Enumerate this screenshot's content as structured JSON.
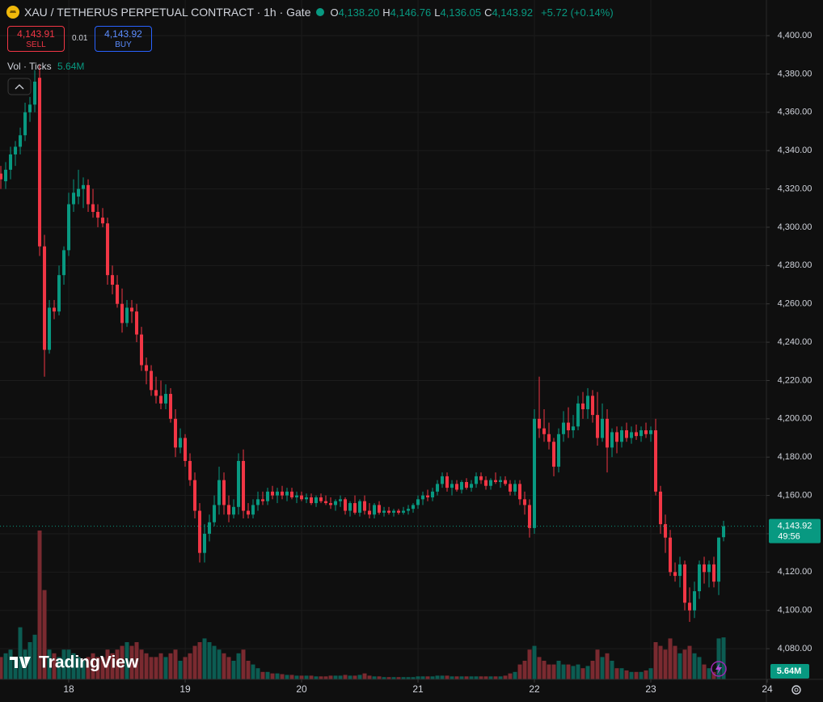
{
  "header": {
    "symbol_title": "XAU / TETHERUS PERPETUAL CONTRACT · 1h · Gate",
    "ohlc": [
      {
        "label": "O",
        "value": "4,138.20"
      },
      {
        "label": "H",
        "value": "4,146.76"
      },
      {
        "label": "L",
        "value": "4,136.05"
      },
      {
        "label": "C",
        "value": "4,143.92"
      }
    ],
    "change": "+5.72 (+0.14%)"
  },
  "trade": {
    "sell_price": "4,143.91",
    "sell_label": "SELL",
    "spread": "0.01",
    "buy_price": "4,143.92",
    "buy_label": "BUY"
  },
  "volume_legend": {
    "label": "Vol · Ticks",
    "value": "5.64M"
  },
  "watermark": "TradingView",
  "chart_data": {
    "type": "candlestick",
    "up_color": "#089981",
    "down_color": "#f23645",
    "grid": true,
    "ylim": [
      4064,
      4418.6
    ],
    "xlim": [
      -14.17,
      143.83
    ],
    "yticks": [
      {
        "value": 4080,
        "label": "4,080.00"
      },
      {
        "value": 4100,
        "label": "4,100.00"
      },
      {
        "value": 4120,
        "label": "4,120.00"
      },
      {
        "value": 4140,
        "label": "4,140.00"
      },
      {
        "value": 4160,
        "label": "4,160.00"
      },
      {
        "value": 4180,
        "label": "4,180.00"
      },
      {
        "value": 4200,
        "label": "4,200.00"
      },
      {
        "value": 4220,
        "label": "4,220.00"
      },
      {
        "value": 4240,
        "label": "4,240.00"
      },
      {
        "value": 4260,
        "label": "4,260.00"
      },
      {
        "value": 4280,
        "label": "4,280.00"
      },
      {
        "value": 4300,
        "label": "4,300.00"
      },
      {
        "value": 4320,
        "label": "4,320.00"
      },
      {
        "value": 4340,
        "label": "4,340.00"
      },
      {
        "value": 4360,
        "label": "4,360.00"
      },
      {
        "value": 4380,
        "label": "4,380.00"
      },
      {
        "value": 4400,
        "label": "4,400.00"
      }
    ],
    "xticks": [
      {
        "value": 0,
        "label": "18"
      },
      {
        "value": 24,
        "label": "19"
      },
      {
        "value": 48,
        "label": "20"
      },
      {
        "value": 72,
        "label": "21"
      },
      {
        "value": 96,
        "label": "22"
      },
      {
        "value": 120,
        "label": "23"
      },
      {
        "value": 144,
        "label": "24"
      }
    ],
    "last_price": 4143.92,
    "last_price_label": "4,143.92",
    "countdown": "49:56",
    "volume_last_label": "5.64M",
    "x": [
      -14,
      -13,
      -12,
      -11,
      -10,
      -9,
      -8,
      -7,
      -6,
      -5,
      -4,
      -3,
      -2,
      -1,
      0,
      1,
      2,
      3,
      4,
      5,
      6,
      7,
      8,
      9,
      10,
      11,
      12,
      13,
      14,
      15,
      16,
      17,
      18,
      19,
      20,
      21,
      22,
      23,
      24,
      25,
      26,
      27,
      28,
      29,
      30,
      31,
      32,
      33,
      34,
      35,
      36,
      37,
      38,
      39,
      40,
      41,
      42,
      43,
      44,
      45,
      46,
      47,
      48,
      49,
      50,
      51,
      52,
      53,
      54,
      55,
      56,
      57,
      58,
      59,
      60,
      61,
      62,
      63,
      64,
      65,
      66,
      67,
      68,
      69,
      70,
      71,
      72,
      73,
      74,
      75,
      76,
      77,
      78,
      79,
      80,
      81,
      82,
      83,
      84,
      85,
      86,
      87,
      88,
      89,
      90,
      91,
      92,
      93,
      94,
      95,
      96,
      97,
      98,
      99,
      100,
      101,
      102,
      103,
      104,
      105,
      106,
      107,
      108,
      109,
      110,
      111,
      112,
      113,
      114,
      115,
      116,
      117,
      118,
      119,
      120,
      121,
      122,
      123,
      124,
      125,
      126,
      127,
      128,
      129,
      130,
      131,
      132,
      133,
      134,
      135
    ],
    "open": [
      4328,
      4324,
      4330,
      4338,
      4342,
      4348,
      4360,
      4364,
      4378,
      4290,
      4236,
      4258,
      4256,
      4275,
      4288,
      4312,
      4316,
      4320,
      4322,
      4312,
      4308,
      4305,
      4302,
      4275,
      4270,
      4260,
      4250,
      4258,
      4256,
      4244,
      4228,
      4225,
      4215,
      4212,
      4208,
      4213,
      4200,
      4185,
      4190,
      4178,
      4168,
      4152,
      4130,
      4140,
      4146,
      4155,
      4168,
      4155,
      4150,
      4154,
      4178,
      4152,
      4150,
      4155,
      4158,
      4157,
      4162,
      4160,
      4162,
      4160,
      4162,
      4159,
      4160,
      4158,
      4159,
      4156,
      4159,
      4157,
      4156,
      4155,
      4157,
      4158,
      4152,
      4156,
      4151,
      4157,
      4152,
      4150,
      4155,
      4151,
      4152,
      4151,
      4152,
      4151,
      4152,
      4153,
      4155,
      4158,
      4160,
      4159,
      4162,
      4166,
      4170,
      4164,
      4166,
      4163,
      4167,
      4164,
      4166,
      4170,
      4168,
      4165,
      4168,
      4167,
      4168,
      4166,
      4162,
      4166,
      4158,
      4155,
      4143,
      4200,
      4195,
      4192,
      4188,
      4175,
      4192,
      4198,
      4194,
      4196,
      4208,
      4205,
      4212,
      4202,
      4190,
      4200,
      4185,
      4193,
      4188,
      4194,
      4190,
      4193,
      4191,
      4194,
      4192,
      4194,
      4162,
      4145,
      4138,
      4120,
      4118,
      4124,
      4104,
      4100,
      4110,
      4124,
      4120,
      4124,
      4115,
      4138.2
    ],
    "high": [
      4332,
      4334,
      4342,
      4345,
      4352,
      4365,
      4368,
      4382,
      4385,
      4296,
      4262,
      4262,
      4280,
      4290,
      4318,
      4325,
      4330,
      4326,
      4325,
      4320,
      4312,
      4310,
      4305,
      4280,
      4275,
      4268,
      4262,
      4262,
      4260,
      4248,
      4232,
      4228,
      4222,
      4220,
      4218,
      4216,
      4205,
      4195,
      4192,
      4182,
      4172,
      4156,
      4145,
      4150,
      4160,
      4175,
      4172,
      4160,
      4158,
      4182,
      4184,
      4156,
      4158,
      4162,
      4162,
      4164,
      4165,
      4164,
      4165,
      4164,
      4164,
      4162,
      4162,
      4161,
      4161,
      4160,
      4161,
      4160,
      4159,
      4158,
      4160,
      4159,
      4157,
      4160,
      4158,
      4160,
      4156,
      4156,
      4157,
      4154,
      4154,
      4153,
      4153,
      4154,
      4155,
      4156,
      4160,
      4162,
      4163,
      4164,
      4168,
      4172,
      4172,
      4168,
      4168,
      4168,
      4169,
      4168,
      4172,
      4172,
      4170,
      4169,
      4172,
      4170,
      4170,
      4168,
      4168,
      4168,
      4162,
      4158,
      4205,
      4222,
      4205,
      4198,
      4190,
      4195,
      4204,
      4206,
      4202,
      4212,
      4214,
      4216,
      4215,
      4214,
      4208,
      4205,
      4195,
      4196,
      4196,
      4198,
      4196,
      4197,
      4196,
      4198,
      4196,
      4200,
      4165,
      4150,
      4142,
      4125,
      4128,
      4126,
      4112,
      4115,
      4126,
      4128,
      4126,
      4128,
      4138,
      4146.76
    ],
    "low": [
      4320,
      4320,
      4325,
      4332,
      4338,
      4345,
      4355,
      4360,
      4285,
      4222,
      4234,
      4252,
      4254,
      4270,
      4285,
      4308,
      4312,
      4310,
      4308,
      4305,
      4300,
      4300,
      4270,
      4265,
      4258,
      4245,
      4248,
      4250,
      4240,
      4225,
      4218,
      4212,
      4208,
      4205,
      4205,
      4198,
      4180,
      4182,
      4175,
      4165,
      4148,
      4125,
      4125,
      4136,
      4144,
      4150,
      4150,
      4146,
      4148,
      4150,
      4148,
      4148,
      4148,
      4152,
      4155,
      4155,
      4158,
      4156,
      4158,
      4157,
      4158,
      4156,
      4157,
      4156,
      4155,
      4154,
      4156,
      4155,
      4153,
      4152,
      4154,
      4150,
      4149,
      4150,
      4149,
      4150,
      4148,
      4148,
      4150,
      4149,
      4150,
      4149,
      4150,
      4150,
      4150,
      4151,
      4153,
      4155,
      4157,
      4157,
      4160,
      4164,
      4162,
      4160,
      4162,
      4161,
      4163,
      4162,
      4164,
      4166,
      4163,
      4163,
      4166,
      4164,
      4165,
      4160,
      4160,
      4155,
      4150,
      4138,
      4140,
      4190,
      4188,
      4184,
      4170,
      4172,
      4188,
      4190,
      4190,
      4194,
      4200,
      4200,
      4198,
      4186,
      4188,
      4172,
      4180,
      4182,
      4185,
      4188,
      4187,
      4189,
      4188,
      4190,
      4188,
      4160,
      4140,
      4130,
      4118,
      4115,
      4112,
      4100,
      4094,
      4096,
      4106,
      4114,
      4112,
      4112,
      4108,
      4136.05
    ],
    "close": [
      4325,
      4330,
      4338,
      4342,
      4348,
      4360,
      4364,
      4376,
      4290,
      4236,
      4258,
      4256,
      4275,
      4288,
      4312,
      4318,
      4320,
      4322,
      4312,
      4308,
      4305,
      4302,
      4275,
      4270,
      4260,
      4250,
      4258,
      4256,
      4244,
      4228,
      4225,
      4215,
      4212,
      4208,
      4213,
      4200,
      4185,
      4190,
      4178,
      4168,
      4152,
      4130,
      4140,
      4146,
      4155,
      4168,
      4155,
      4150,
      4154,
      4178,
      4152,
      4150,
      4155,
      4158,
      4157,
      4162,
      4160,
      4162,
      4160,
      4162,
      4159,
      4160,
      4158,
      4159,
      4156,
      4159,
      4157,
      4156,
      4155,
      4157,
      4158,
      4152,
      4156,
      4151,
      4157,
      4152,
      4150,
      4155,
      4151,
      4152,
      4151,
      4152,
      4151,
      4152,
      4153,
      4155,
      4158,
      4160,
      4159,
      4162,
      4166,
      4170,
      4164,
      4166,
      4163,
      4167,
      4164,
      4166,
      4170,
      4168,
      4165,
      4168,
      4167,
      4168,
      4166,
      4162,
      4166,
      4158,
      4155,
      4143,
      4200,
      4195,
      4192,
      4188,
      4175,
      4192,
      4198,
      4194,
      4196,
      4208,
      4205,
      4212,
      4202,
      4190,
      4200,
      4185,
      4193,
      4188,
      4194,
      4190,
      4193,
      4191,
      4194,
      4192,
      4194,
      4162,
      4145,
      4138,
      4120,
      4118,
      4124,
      4104,
      4100,
      4110,
      4124,
      4120,
      4124,
      4115,
      4138,
      4143.92
    ],
    "volume": [
      3,
      3.5,
      4,
      3,
      7,
      4,
      5,
      6,
      20,
      12,
      4,
      3.5,
      3,
      4,
      4,
      3.5,
      3,
      2.5,
      3,
      3.5,
      3,
      3,
      4,
      3.5,
      4,
      4.5,
      5,
      4.5,
      5,
      4,
      3.5,
      3,
      3,
      3.5,
      3,
      3.5,
      4,
      2.5,
      3,
      3.5,
      4.5,
      5,
      5.5,
      5,
      4.5,
      4,
      3.5,
      3,
      2.5,
      3.5,
      4,
      2.5,
      2,
      1.5,
      1,
      1,
      0.8,
      0.8,
      0.7,
      0.6,
      0.6,
      0.5,
      0.5,
      0.5,
      0.5,
      0.4,
      0.4,
      0.4,
      0.5,
      0.5,
      0.5,
      0.6,
      0.5,
      0.5,
      0.6,
      0.8,
      0.5,
      0.4,
      0.4,
      0.3,
      0.3,
      0.3,
      0.3,
      0.3,
      0.3,
      0.3,
      0.4,
      0.4,
      0.4,
      0.4,
      0.5,
      0.5,
      0.5,
      0.4,
      0.4,
      0.4,
      0.4,
      0.4,
      0.4,
      0.4,
      0.4,
      0.4,
      0.4,
      0.4,
      0.5,
      0.8,
      1,
      2,
      2.5,
      4,
      4.5,
      3,
      2.5,
      2,
      2,
      2.5,
      2,
      2,
      1.8,
      2,
      1.5,
      1.8,
      2.5,
      4,
      3,
      3.5,
      2.5,
      1.5,
      1.5,
      1.2,
      1,
      1,
      1,
      1.2,
      1.5,
      5,
      4.5,
      4,
      5.5,
      4.5,
      3.5,
      4,
      4.5,
      3.5,
      3,
      2,
      1.5,
      1,
      5.5,
      5.64
    ]
  }
}
